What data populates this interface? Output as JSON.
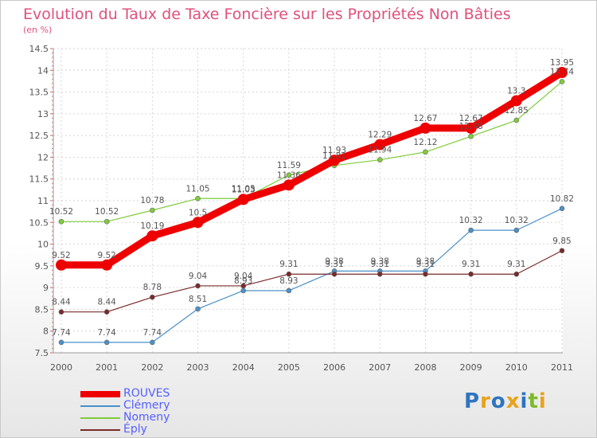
{
  "title": "Evolution du Taux de Taxe Foncière sur les Propriétés Non Bâties",
  "subtitle": "(en %)",
  "brand": {
    "text": "Proxiti",
    "colors": [
      "#2f74c0",
      "#e9a21a",
      "#2f74c0",
      "#e9a21a",
      "#2f74c0",
      "#7dbb2a",
      "#e9a21a"
    ]
  },
  "chart_data": {
    "type": "line",
    "title": "Evolution du Taux de Taxe Foncière sur les Propriétés Non Bâties",
    "ylabel": "(en %)",
    "xlabel": "",
    "x": [
      "2000",
      "2001",
      "2002",
      "2003",
      "2004",
      "2005",
      "2006",
      "2007",
      "2008",
      "2009",
      "2010",
      "2011"
    ],
    "ylim": [
      7.5,
      14.5
    ],
    "yticks": [
      "7.5",
      "8",
      "8.5",
      "9",
      "9.5",
      "10",
      "10.5",
      "11",
      "11.5",
      "12",
      "12.5",
      "13",
      "13.5",
      "14",
      "14.5"
    ],
    "grid": true,
    "legend_position": "bottom-left",
    "series": [
      {
        "name": "Clémery",
        "color": "#4a90c8",
        "values": [
          7.74,
          7.74,
          7.74,
          8.51,
          8.93,
          8.93,
          9.38,
          9.38,
          9.38,
          10.32,
          10.32,
          10.82
        ],
        "labels": [
          "7.74",
          "7.74",
          "7.74",
          "8.51",
          "8.93",
          "8.93",
          "9.38",
          "9.38",
          "9.38",
          "10.32",
          "10.32",
          "10.82"
        ]
      },
      {
        "name": "Nomeny",
        "color": "#7fcc3a",
        "values": [
          10.52,
          10.52,
          10.78,
          11.05,
          11.05,
          11.59,
          11.81,
          11.94,
          12.12,
          12.48,
          12.85,
          13.74
        ],
        "labels": [
          "10.52",
          "10.52",
          "10.78",
          "11.05",
          "11.05",
          "11.59",
          "11.81",
          "11.94",
          "12.12",
          "12.48",
          "12.85",
          "13.74"
        ]
      },
      {
        "name": "Éply",
        "color": "#7a2a2a",
        "values": [
          8.44,
          8.44,
          8.78,
          9.04,
          9.04,
          9.31,
          9.31,
          9.31,
          9.31,
          9.31,
          9.31,
          9.85
        ],
        "labels": [
          "8.44",
          "8.44",
          "8.78",
          "9.04",
          "9.04",
          "9.31",
          "9.31",
          "9.31",
          "9.31",
          "9.31",
          "9.31",
          "9.85"
        ]
      },
      {
        "name": "ROUVES",
        "color": "#ee0000",
        "values": [
          9.52,
          9.52,
          10.19,
          10.5,
          11.03,
          11.36,
          11.93,
          12.29,
          12.67,
          12.67,
          13.3,
          13.95
        ],
        "labels": [
          "9.52",
          "9.52",
          "10.19",
          "10.5",
          "11.03",
          "11.36",
          "11.93",
          "12.29",
          "12.67",
          "12.67",
          "13.3",
          "13.95"
        ]
      }
    ],
    "legend": [
      "ROUVES",
      "Clémery",
      "Nomeny",
      "Éply"
    ]
  }
}
